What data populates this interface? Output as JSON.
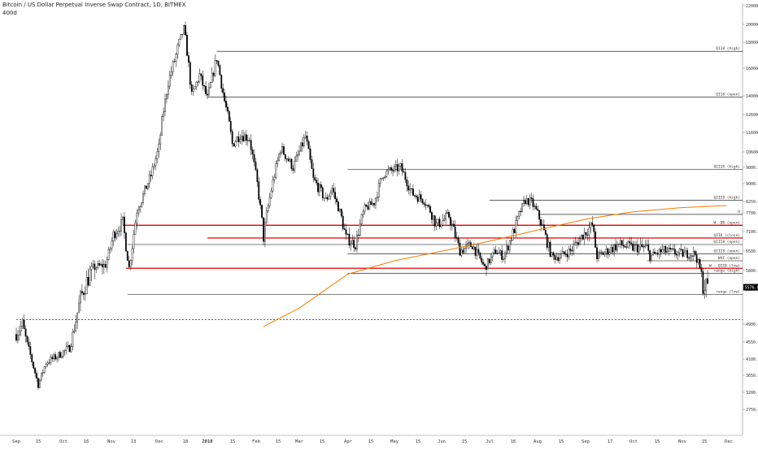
{
  "header": {
    "title": "Bitcoin / US Dollar Perpetual Inverse Swap Contract, 1D, BITMEX",
    "subtitle": "400d"
  },
  "chart_data": {
    "type": "candlestick",
    "title": "Bitcoin / US Dollar Perpetual Inverse Swap Contract, 1D, BITMEX",
    "subtitle": "400d",
    "ylim": [
      2700,
      22300
    ],
    "y_ticks": [
      2750.0,
      3200.0,
      3650.0,
      4100.0,
      4550.0,
      4900.0,
      5550.0,
      5800.0,
      6500.0,
      7100.0,
      7700.0,
      8250.0,
      9000.0,
      9800.0,
      10600.0,
      11600.0,
      12600.0,
      14000.0,
      16000.0,
      18000.0,
      20000.0,
      22000.0
    ],
    "y_tick_labels": [
      "2750.0",
      "3200.0",
      "3650.0",
      "4100.0",
      "4550.0",
      "4900.0",
      "5550.0",
      "5800.0",
      "6500.0",
      "7100.0",
      "7700.0",
      "8250.0",
      "9000.0",
      "9800.0",
      "10600.0",
      "11600.0",
      "12600.0",
      "14000.0",
      "16000.0",
      "18000.0",
      "20000.0",
      "22000.0"
    ],
    "x_tick_labels": [
      "Sep",
      "15",
      "Oct",
      "16",
      "Nov",
      "13",
      "Dec",
      "18",
      "2018",
      "15",
      "Feb",
      "15",
      "Mar",
      "15",
      "Apr",
      "15",
      "May",
      "15",
      "Jun",
      "15",
      "Jul",
      "16",
      "Aug",
      "15",
      "Sep",
      "17",
      "Oct",
      "15",
      "Nov",
      "15",
      "Dec"
    ],
    "last_price": "5576.0",
    "ohlc_close_anchors": [
      {
        "date": "2017-09-01",
        "close": 4700
      },
      {
        "date": "2017-09-05",
        "close": 4900
      },
      {
        "date": "2017-09-10",
        "close": 4200
      },
      {
        "date": "2017-09-15",
        "close": 3400
      },
      {
        "date": "2017-09-20",
        "close": 4000
      },
      {
        "date": "2017-09-28",
        "close": 4200
      },
      {
        "date": "2017-10-05",
        "close": 4400
      },
      {
        "date": "2017-10-12",
        "close": 5400
      },
      {
        "date": "2017-10-20",
        "close": 5900
      },
      {
        "date": "2017-10-28",
        "close": 6000
      },
      {
        "date": "2017-11-02",
        "close": 7000
      },
      {
        "date": "2017-11-08",
        "close": 7400
      },
      {
        "date": "2017-11-12",
        "close": 5900
      },
      {
        "date": "2017-11-17",
        "close": 7800
      },
      {
        "date": "2017-11-26",
        "close": 9400
      },
      {
        "date": "2017-12-01",
        "close": 10800
      },
      {
        "date": "2017-12-07",
        "close": 15000
      },
      {
        "date": "2017-12-12",
        "close": 17000
      },
      {
        "date": "2017-12-17",
        "close": 19500
      },
      {
        "date": "2017-12-22",
        "close": 14000
      },
      {
        "date": "2017-12-27",
        "close": 15500
      },
      {
        "date": "2018-01-01",
        "close": 13800
      },
      {
        "date": "2018-01-07",
        "close": 16800
      },
      {
        "date": "2018-01-12",
        "close": 13600
      },
      {
        "date": "2018-01-17",
        "close": 11000
      },
      {
        "date": "2018-01-22",
        "close": 11500
      },
      {
        "date": "2018-01-28",
        "close": 11300
      },
      {
        "date": "2018-02-02",
        "close": 9000
      },
      {
        "date": "2018-02-06",
        "close": 6900
      },
      {
        "date": "2018-02-10",
        "close": 8400
      },
      {
        "date": "2018-02-17",
        "close": 10800
      },
      {
        "date": "2018-02-25",
        "close": 9800
      },
      {
        "date": "2018-03-05",
        "close": 11400
      },
      {
        "date": "2018-03-10",
        "close": 9200
      },
      {
        "date": "2018-03-18",
        "close": 8300
      },
      {
        "date": "2018-03-22",
        "close": 8800
      },
      {
        "date": "2018-03-31",
        "close": 6900
      },
      {
        "date": "2018-04-06",
        "close": 6700
      },
      {
        "date": "2018-04-12",
        "close": 7900
      },
      {
        "date": "2018-04-18",
        "close": 8200
      },
      {
        "date": "2018-04-24",
        "close": 9500
      },
      {
        "date": "2018-05-05",
        "close": 9800
      },
      {
        "date": "2018-05-12",
        "close": 8600
      },
      {
        "date": "2018-05-20",
        "close": 8300
      },
      {
        "date": "2018-05-28",
        "close": 7300
      },
      {
        "date": "2018-06-05",
        "close": 7600
      },
      {
        "date": "2018-06-12",
        "close": 6500
      },
      {
        "date": "2018-06-20",
        "close": 6700
      },
      {
        "date": "2018-06-28",
        "close": 5900
      },
      {
        "date": "2018-07-05",
        "close": 6500
      },
      {
        "date": "2018-07-10",
        "close": 6300
      },
      {
        "date": "2018-07-18",
        "close": 7300
      },
      {
        "date": "2018-07-24",
        "close": 8300
      },
      {
        "date": "2018-07-28",
        "close": 8200
      },
      {
        "date": "2018-08-03",
        "close": 7400
      },
      {
        "date": "2018-08-10",
        "close": 6300
      },
      {
        "date": "2018-08-15",
        "close": 6300
      },
      {
        "date": "2018-08-22",
        "close": 6500
      },
      {
        "date": "2018-08-30",
        "close": 7000
      },
      {
        "date": "2018-09-05",
        "close": 7300
      },
      {
        "date": "2018-09-08",
        "close": 6300
      },
      {
        "date": "2018-09-15",
        "close": 6500
      },
      {
        "date": "2018-09-22",
        "close": 6700
      },
      {
        "date": "2018-10-01",
        "close": 6600
      },
      {
        "date": "2018-10-10",
        "close": 6600
      },
      {
        "date": "2018-10-12",
        "close": 6300
      },
      {
        "date": "2018-10-20",
        "close": 6500
      },
      {
        "date": "2018-11-01",
        "close": 6400
      },
      {
        "date": "2018-11-10",
        "close": 6400
      },
      {
        "date": "2018-11-14",
        "close": 5700
      },
      {
        "date": "2018-11-15",
        "close": 5600
      },
      {
        "date": "2018-11-18",
        "close": 5576
      }
    ],
    "moving_average": {
      "color": "#f57c00",
      "points": [
        {
          "date": "2018-02-06",
          "value": 4850
        },
        {
          "date": "2018-03-01",
          "value": 5200
        },
        {
          "date": "2018-04-01",
          "value": 5750
        },
        {
          "date": "2018-05-01",
          "value": 6150
        },
        {
          "date": "2018-06-01",
          "value": 6500
        },
        {
          "date": "2018-07-01",
          "value": 6800
        },
        {
          "date": "2018-08-01",
          "value": 7150
        },
        {
          "date": "2018-09-01",
          "value": 7500
        },
        {
          "date": "2018-10-01",
          "value": 7750
        },
        {
          "date": "2018-11-01",
          "value": 7950
        },
        {
          "date": "2018-11-30",
          "value": 8050
        }
      ]
    },
    "annotations": {
      "horizontal_levels": [
        {
          "label": "QI18 (high)",
          "value": 17300,
          "start": "2018-01-07",
          "color": "#000000"
        },
        {
          "label": "QI18 (open)",
          "value": 13900,
          "start": "2018-01-01",
          "color": "#000000"
        },
        {
          "label": "QII18 (high)",
          "value": 9700,
          "start": "2018-04-01",
          "color": "#000000"
        },
        {
          "label": "QIII8 (high)",
          "value": 8300,
          "start": "2018-07-01",
          "color": "#000000"
        },
        {
          "label": "H",
          "value": 7650,
          "start": "2018-08-01",
          "color": "#000000"
        },
        {
          "label": "W -0B (open)",
          "value": 7300,
          "start": "2017-11-08",
          "color": "#e00000"
        },
        {
          "label": "QII8 (close)",
          "value": 6900,
          "start": "2018-01-01",
          "color": "#e00000"
        },
        {
          "label": "QIII8 (open)",
          "value": 6700,
          "start": "2017-11-11",
          "color": "#000000"
        },
        {
          "label": "QIII8 (open)",
          "value": 6400,
          "start": "2018-04-01",
          "color": "#000000"
        },
        {
          "label": "W4I (open)",
          "value": 6150,
          "start": "2018-10-10",
          "color": "#000000"
        },
        {
          "label": "W - QII8 (low)",
          "value": 5880,
          "start": "2017-11-10",
          "color": "#e00000"
        },
        {
          "label": "range (high)",
          "value": 5760,
          "start": "2018-04-01",
          "color": "#000000"
        },
        {
          "label": "range (low)",
          "value": 5450,
          "start": "2017-11-11",
          "color": "#000000"
        }
      ],
      "dotted_level": {
        "value": 4980,
        "start": "2017-09-01"
      }
    }
  }
}
